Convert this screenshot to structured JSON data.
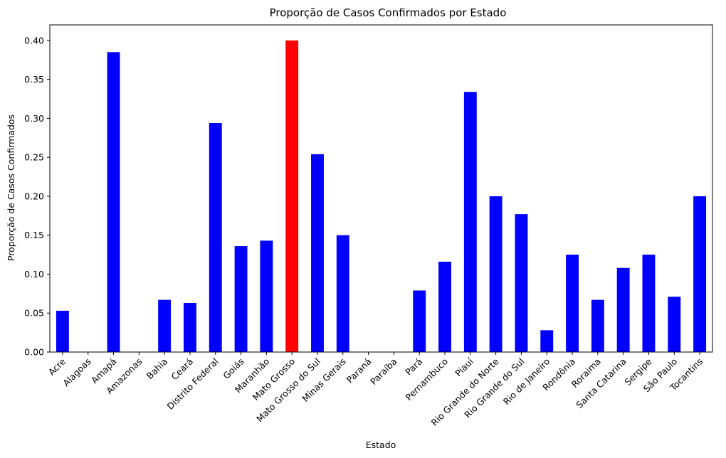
{
  "chart_data": {
    "type": "bar",
    "title": "Proporção de Casos Confirmados por Estado",
    "xlabel": "Estado",
    "ylabel": "Proporção de Casos Confirmados",
    "ylim": [
      0,
      0.42
    ],
    "yticks": [
      "0.00",
      "0.05",
      "0.10",
      "0.15",
      "0.20",
      "0.25",
      "0.30",
      "0.35",
      "0.40"
    ],
    "grid": false,
    "legend": "none",
    "colors": {
      "default": "#0000ff",
      "highlight": "#ff0000",
      "axis": "#000000"
    },
    "highlight_category": "Mato Grosso",
    "categories": [
      "Acre",
      "Alagoas",
      "Amapá",
      "Amazonas",
      "Bahia",
      "Ceará",
      "Distrito Federal",
      "Goiás",
      "Maranhão",
      "Mato Grosso",
      "Mato Grosso do Sul",
      "Minas Gerais",
      "Paraná",
      "Paraíba",
      "Pará",
      "Pernambuco",
      "Piauí",
      "Rio Grande do Norte",
      "Rio Grande do Sul",
      "Rio de Janeiro",
      "Rondônia",
      "Roraima",
      "Santa Catarina",
      "Sergipe",
      "São Paulo",
      "Tocantins"
    ],
    "values": [
      0.053,
      0.0,
      0.385,
      0.0,
      0.067,
      0.063,
      0.294,
      0.136,
      0.143,
      0.4,
      0.254,
      0.15,
      0.0,
      0.0,
      0.079,
      0.116,
      0.334,
      0.2,
      0.177,
      0.028,
      0.125,
      0.067,
      0.108,
      0.125,
      0.071,
      0.2
    ]
  }
}
